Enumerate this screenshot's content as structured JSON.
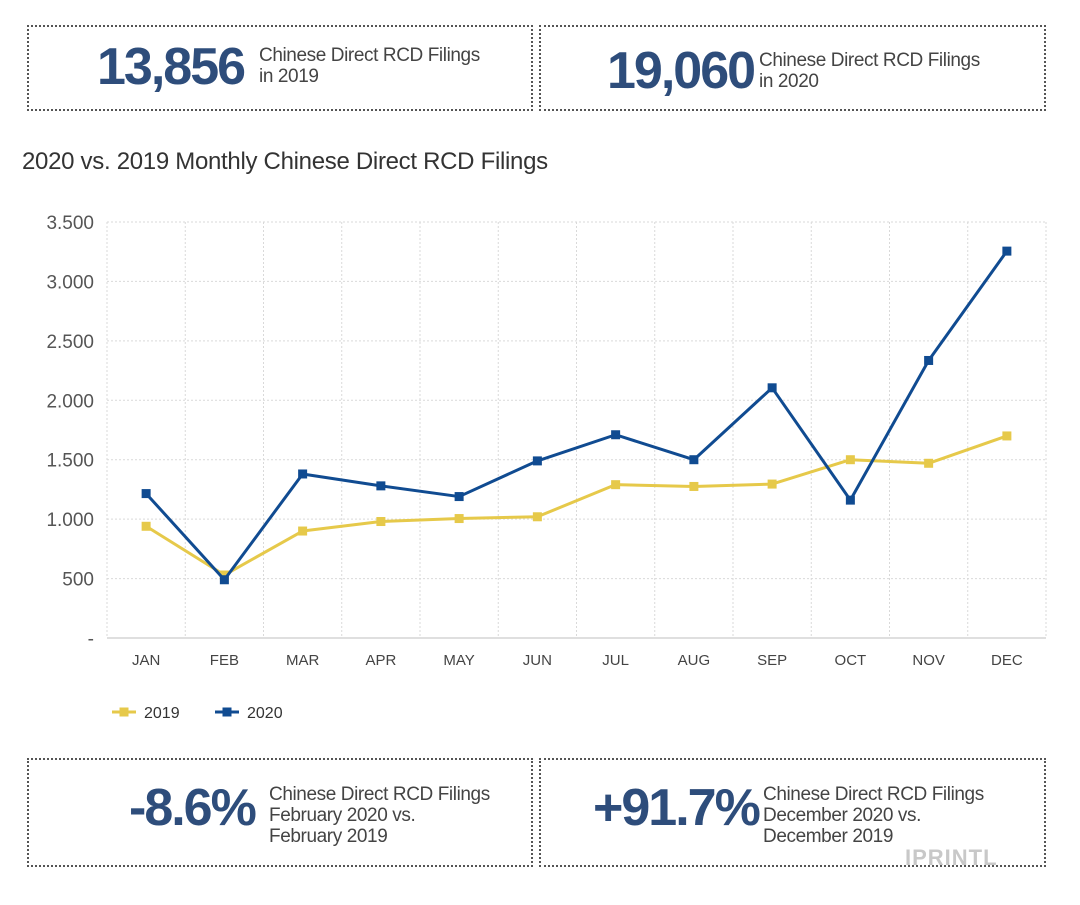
{
  "stats_top": [
    {
      "value": "13,856",
      "line1": "Chinese Direct RCD Filings",
      "line2": "in 2019"
    },
    {
      "value": "19,060",
      "line1": "Chinese Direct RCD Filings",
      "line2": "in 2020"
    }
  ],
  "stats_bottom": [
    {
      "value": "-8.6%",
      "line1": "Chinese Direct RCD Filings",
      "line2": "February 2020 vs.",
      "line3": "February 2019"
    },
    {
      "value": "+91.7%",
      "line1": "Chinese Direct RCD Filings",
      "line2": "December 2020 vs.",
      "line3": "December 2019"
    }
  ],
  "watermark": "IPRINTL",
  "chart_data": {
    "type": "line",
    "title": "2020 vs. 2019 Monthly Chinese Direct RCD Filings",
    "xlabel": "",
    "ylabel": "",
    "categories": [
      "JAN",
      "FEB",
      "MAR",
      "APR",
      "MAY",
      "JUN",
      "JUL",
      "AUG",
      "SEP",
      "OCT",
      "NOV",
      "DEC"
    ],
    "y_ticks": [
      {
        "value": 0,
        "label": "-"
      },
      {
        "value": 500,
        "label": "500"
      },
      {
        "value": 1000,
        "label": "1.000"
      },
      {
        "value": 1500,
        "label": "1.500"
      },
      {
        "value": 2000,
        "label": "2.000"
      },
      {
        "value": 2500,
        "label": "2.500"
      },
      {
        "value": 3000,
        "label": "3.000"
      },
      {
        "value": 3500,
        "label": "3.500"
      }
    ],
    "ylim": [
      0,
      3500
    ],
    "grid": true,
    "legend_position": "bottom-left",
    "series": [
      {
        "name": "2019",
        "color": "#e6c94a",
        "values": [
          940,
          530,
          900,
          980,
          1005,
          1020,
          1290,
          1275,
          1295,
          1500,
          1470,
          1700
        ]
      },
      {
        "name": "2020",
        "color": "#104b91",
        "values": [
          1215,
          490,
          1380,
          1280,
          1190,
          1490,
          1710,
          1500,
          2105,
          1160,
          2335,
          3255
        ]
      }
    ]
  }
}
